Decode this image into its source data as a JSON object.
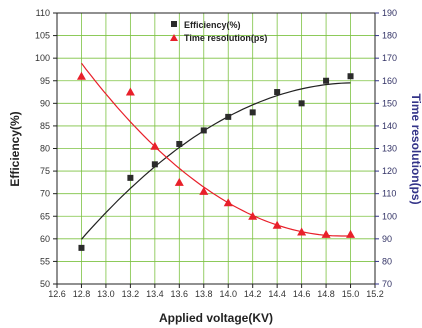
{
  "chart_data": {
    "type": "scatter",
    "title": "",
    "xlabel": "Applied voltage(KV)",
    "ylabel": "Efficiency(%)",
    "y2label": "Time resolution(ps)",
    "xlim": [
      12.6,
      15.2
    ],
    "ylim": [
      50,
      110
    ],
    "y2lim": [
      70,
      190
    ],
    "xticks": [
      "12.6",
      "12.8",
      "13.0",
      "13.2",
      "13.4",
      "13.6",
      "13.8",
      "14.0",
      "14.2",
      "14.4",
      "14.6",
      "14.8",
      "15.0",
      "15.2"
    ],
    "yticks": [
      "50",
      "55",
      "60",
      "65",
      "70",
      "75",
      "80",
      "85",
      "90",
      "95",
      "100",
      "105",
      "110"
    ],
    "y2ticks": [
      "70",
      "80",
      "90",
      "100",
      "110",
      "120",
      "130",
      "140",
      "150",
      "160",
      "170",
      "180",
      "190"
    ],
    "grid": true,
    "grid_color": "#7dc242",
    "legend_position": "top-center",
    "series": [
      {
        "name": "Efficiency(%)",
        "axis": "left",
        "marker": "square",
        "color": "#2b2b2b",
        "fit_color": "#222222",
        "x": [
          12.8,
          13.2,
          13.4,
          13.6,
          13.8,
          14.0,
          14.2,
          14.4,
          14.6,
          14.8,
          15.0
        ],
        "y": [
          58,
          73.5,
          76.5,
          81,
          84,
          87,
          88,
          92.5,
          90,
          95,
          96
        ]
      },
      {
        "name": "Time resolution(ps)",
        "axis": "right",
        "marker": "triangle",
        "color": "#e8202a",
        "fit_color": "#e8202a",
        "x": [
          12.8,
          13.2,
          13.4,
          13.6,
          13.8,
          14.0,
          14.2,
          14.4,
          14.6,
          14.8,
          15.0
        ],
        "y": [
          162,
          155,
          131,
          115,
          111,
          106,
          100,
          96,
          93,
          92,
          92
        ]
      }
    ]
  }
}
